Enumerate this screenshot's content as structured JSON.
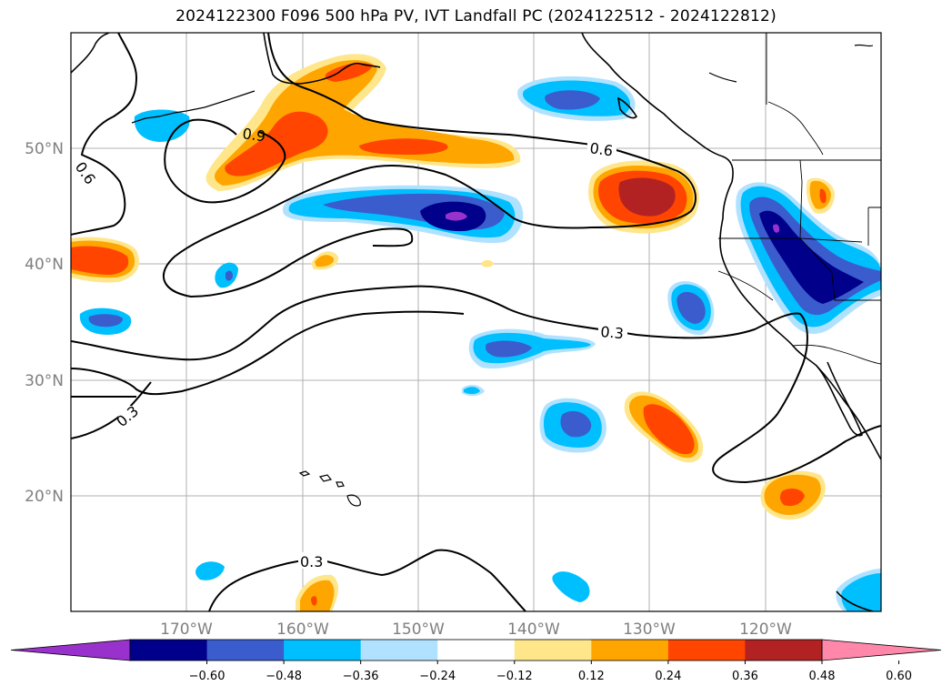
{
  "title": "2024122300 F096 500 hPa PV, IVT Landfall PC (2024122512 - 2024122812)",
  "map": {
    "projection": "PlateCarree",
    "lon_range": [
      -180,
      -110
    ],
    "lat_range": [
      10,
      60
    ],
    "x_tick_labels": [
      "170°W",
      "160°W",
      "150°W",
      "140°W",
      "130°W",
      "120°W"
    ],
    "y_tick_labels": [
      "50°N",
      "40°N",
      "30°N",
      "20°N"
    ],
    "gridlines": true,
    "coastlines": true,
    "borders": true
  },
  "contour_labels": [
    "0.9",
    "0.6",
    "0.6",
    "0.3",
    "0.3",
    "0.3"
  ],
  "colorbar": {
    "ticks": [
      "−0.60",
      "−0.48",
      "−0.36",
      "−0.24",
      "−0.12",
      "0.12",
      "0.24",
      "0.36",
      "0.48",
      "0.60"
    ],
    "colors": [
      "#9932cc",
      "#00008b",
      "#3a5ccc",
      "#00bfff",
      "#b0e2ff",
      "#ffffff",
      "#ffe68a",
      "#ffa500",
      "#ff4500",
      "#b22222",
      "#ff88aa"
    ],
    "extend": "both"
  }
}
